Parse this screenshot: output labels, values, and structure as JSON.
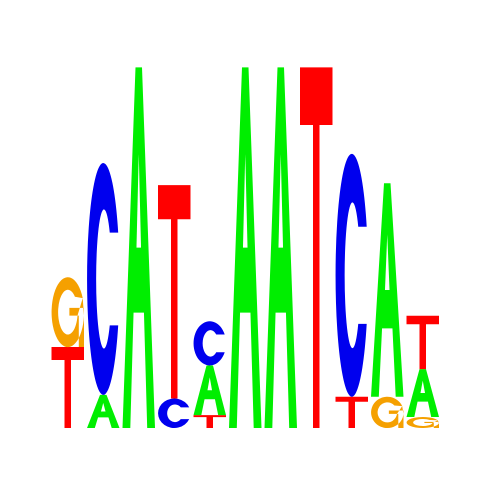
{
  "colors": {
    "A": "#00ee00",
    "C": "#0000ee",
    "G": "#f5a000",
    "T": "#ff0000",
    "background": "#ffffff"
  },
  "chart_data": {
    "type": "sequence-logo",
    "title": "",
    "xlabel": "",
    "ylabel": "",
    "alphabet": [
      "A",
      "C",
      "G",
      "T"
    ],
    "ylim": [
      0,
      2
    ],
    "positions": [
      {
        "index": 1,
        "stack": [
          {
            "base": "T",
            "bits": 0.44
          },
          {
            "base": "G",
            "bits": 0.38
          }
        ]
      },
      {
        "index": 2,
        "stack": [
          {
            "base": "A",
            "bits": 0.18
          },
          {
            "base": "C",
            "bits": 1.26
          }
        ]
      },
      {
        "index": 3,
        "stack": [
          {
            "base": "A",
            "bits": 1.96
          }
        ]
      },
      {
        "index": 4,
        "stack": [
          {
            "base": "C",
            "bits": 0.16
          },
          {
            "base": "T",
            "bits": 1.16
          }
        ]
      },
      {
        "index": 5,
        "stack": [
          {
            "base": "T",
            "bits": 0.07
          },
          {
            "base": "A",
            "bits": 0.27
          },
          {
            "base": "C",
            "bits": 0.24
          }
        ]
      },
      {
        "index": 6,
        "stack": [
          {
            "base": "A",
            "bits": 1.96
          }
        ]
      },
      {
        "index": 7,
        "stack": [
          {
            "base": "A",
            "bits": 1.96
          }
        ]
      },
      {
        "index": 8,
        "stack": [
          {
            "base": "T",
            "bits": 1.96
          }
        ]
      },
      {
        "index": 9,
        "stack": [
          {
            "base": "T",
            "bits": 0.17
          },
          {
            "base": "C",
            "bits": 1.32
          }
        ]
      },
      {
        "index": 10,
        "stack": [
          {
            "base": "G",
            "bits": 0.17
          },
          {
            "base": "A",
            "bits": 1.16
          }
        ]
      },
      {
        "index": 11,
        "stack": [
          {
            "base": "G",
            "bits": 0.06
          },
          {
            "base": "A",
            "bits": 0.26
          },
          {
            "base": "T",
            "bits": 0.29
          }
        ]
      }
    ]
  }
}
